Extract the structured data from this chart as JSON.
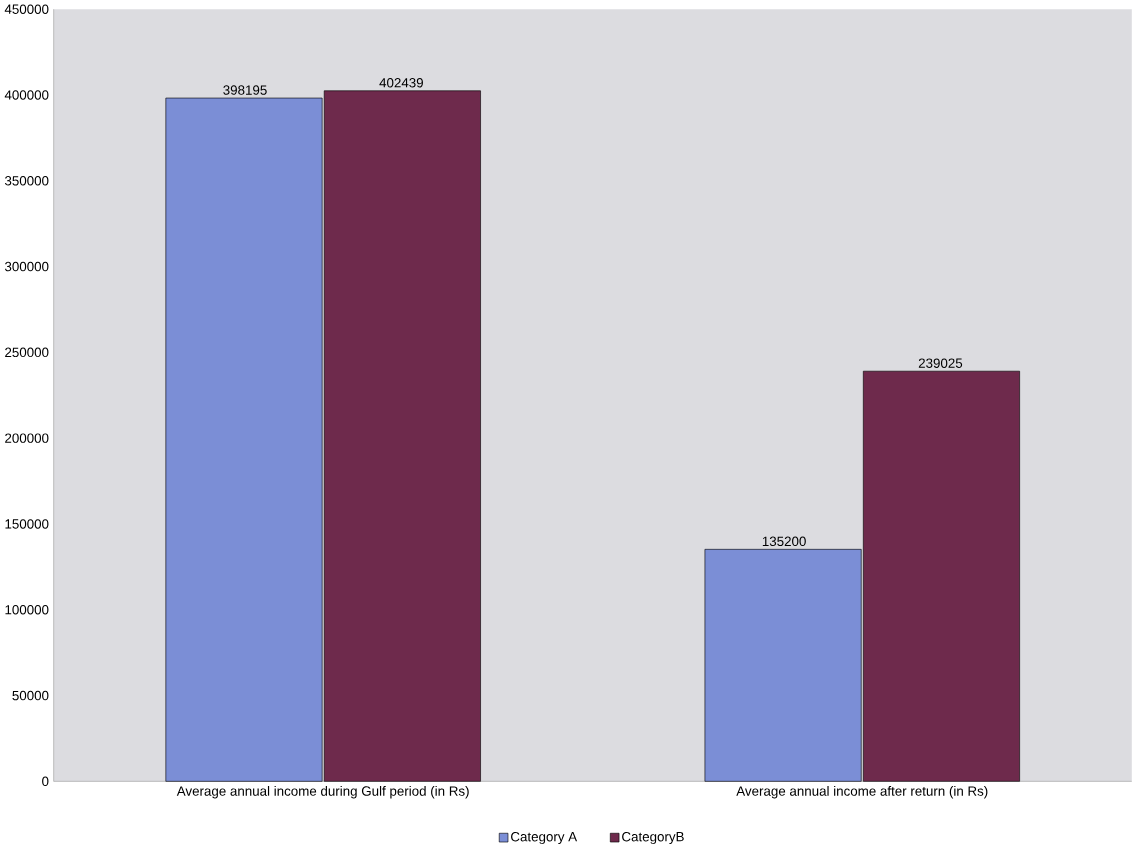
{
  "chart_data": {
    "type": "bar",
    "categories": [
      "Average annual income during Gulf period (in Rs)",
      "Average annual income after return (in  Rs)"
    ],
    "series": [
      {
        "name": "Category A",
        "color": "#7b8ed6",
        "values": [
          398195,
          135200
        ]
      },
      {
        "name": "CategoryB",
        "color": "#6e2a4c",
        "values": [
          402439,
          239025
        ]
      }
    ],
    "ylim": [
      0,
      450000
    ],
    "yticks": [
      0,
      50000,
      100000,
      150000,
      200000,
      250000,
      300000,
      350000,
      400000,
      450000
    ],
    "data_labels": true,
    "legend": "bottom",
    "grid": false
  }
}
